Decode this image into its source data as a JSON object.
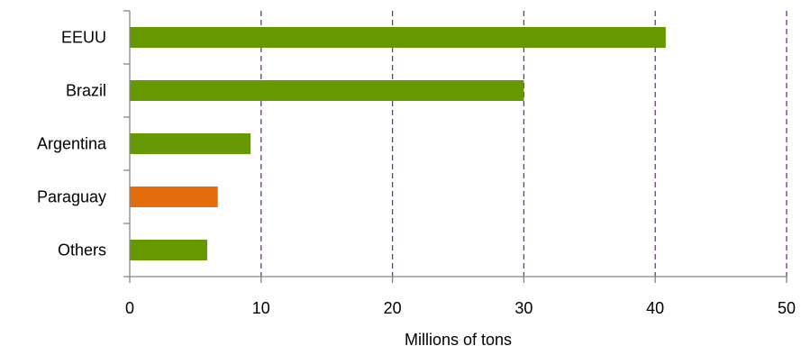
{
  "chart_data": {
    "type": "bar",
    "orientation": "horizontal",
    "categories": [
      "EEUU",
      "Brazil",
      "Argentina",
      "Paraguay",
      "Others"
    ],
    "values": [
      40.8,
      30.0,
      9.2,
      6.7,
      5.9
    ],
    "bar_colors": [
      "#669900",
      "#669900",
      "#669900",
      "#e46c0a",
      "#669900"
    ],
    "xlabel": "Millions of tons",
    "ylabel": "",
    "title": "",
    "xlim": [
      0,
      50
    ],
    "xticks": [
      0,
      10,
      20,
      30,
      40,
      50
    ],
    "xtick_labels": [
      "0",
      "10",
      "20",
      "30",
      "40",
      "50"
    ],
    "grid": "vertical-dashed",
    "grid_color": "#7030a0",
    "axis_color": "#868686",
    "legend": "none"
  }
}
